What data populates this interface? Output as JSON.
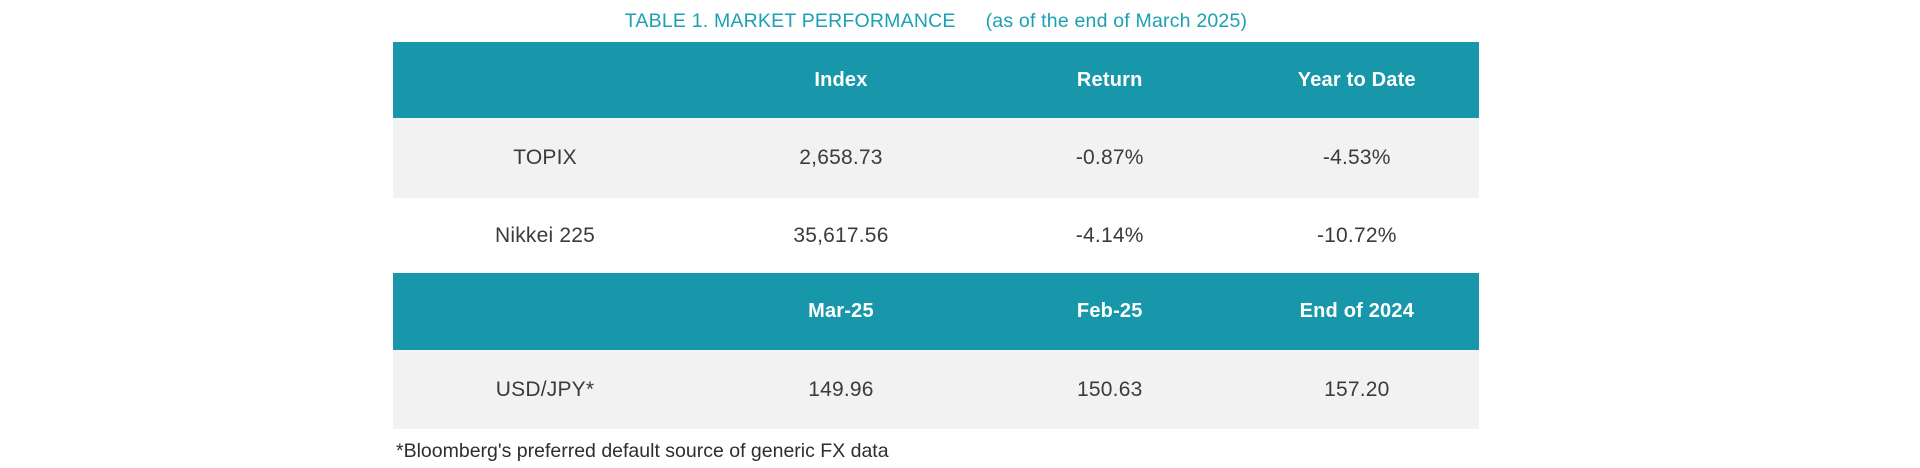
{
  "title": {
    "main": "TABLE 1. MARKET PERFORMANCE",
    "as_of": "(as of the end of March 2025)"
  },
  "colors": {
    "header_teal": "#1897ab",
    "title_teal": "#1ba0b4",
    "row_alt_gray": "#f2f2f2",
    "row_white": "#ffffff",
    "header_text": "#ffffff",
    "body_text": "#3b3b3b"
  },
  "index_table": {
    "headers": [
      "",
      "Index",
      "Return",
      "Year to Date"
    ],
    "rows": [
      [
        "TOPIX",
        "2,658.73",
        "-0.87%",
        "-4.53%"
      ],
      [
        "Nikkei 225",
        "35,617.56",
        "-4.14%",
        "-10.72%"
      ]
    ]
  },
  "fx_table": {
    "headers": [
      "",
      "Mar-25",
      "Feb-25",
      "End of 2024"
    ],
    "rows": [
      [
        "USD/JPY*",
        "149.96",
        "150.63",
        "157.20"
      ]
    ]
  },
  "footnote": "*Bloomberg's preferred default source of generic FX data"
}
